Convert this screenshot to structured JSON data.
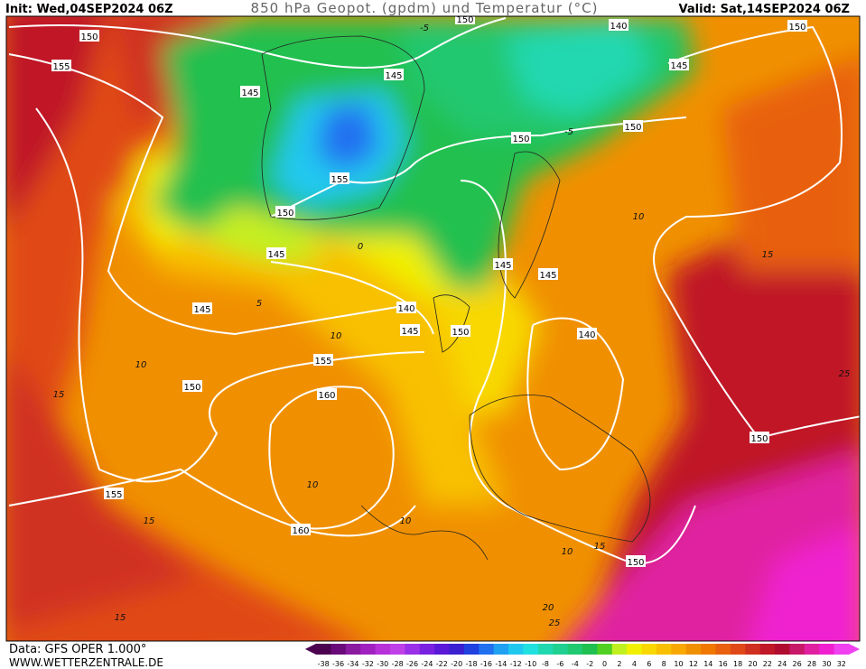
{
  "header": {
    "init": "Init: Wed,04SEP2024 06Z",
    "title": "850 hPa Geopot. (gpdm) und Temperatur (°C)",
    "valid": "Valid: Sat,14SEP2024 06Z"
  },
  "footer": {
    "source": "Data: GFS OPER 1.000°",
    "site": "WWW.WETTERZENTRALE.DE"
  },
  "geopotential_labels": [
    150,
    155,
    145,
    145,
    150,
    140,
    150,
    145,
    150,
    150,
    155,
    150,
    145,
    145,
    145,
    145,
    140,
    145,
    150,
    140,
    155,
    150,
    160,
    150,
    155,
    160,
    150
  ],
  "temperature_labels": [
    10,
    15,
    10,
    10,
    15,
    25,
    10,
    10,
    15,
    10,
    15,
    20,
    25,
    15,
    5,
    0,
    -5,
    -5
  ],
  "colorbar": {
    "labels": [
      -38,
      -36,
      -34,
      -32,
      -30,
      -28,
      -26,
      -24,
      -22,
      -20,
      -18,
      -16,
      -14,
      -12,
      -10,
      -8,
      -6,
      -4,
      -2,
      0,
      2,
      4,
      6,
      8,
      10,
      12,
      14,
      16,
      18,
      20,
      22,
      24,
      26,
      28,
      30,
      32
    ],
    "colors": [
      "#4b0050",
      "#6a0a7a",
      "#8a1aa0",
      "#a020c0",
      "#b830d8",
      "#c040e8",
      "#9a30e8",
      "#7a20e0",
      "#5a18d8",
      "#3a20d0",
      "#2040e0",
      "#2070f0",
      "#20a0f0",
      "#20c8f0",
      "#20e0e0",
      "#20d8b0",
      "#20d090",
      "#20c870",
      "#20c050",
      "#50d020",
      "#c0f020",
      "#f0f000",
      "#f8d800",
      "#f8c000",
      "#f8a800",
      "#f09000",
      "#f07800",
      "#e86010",
      "#e04818",
      "#d03020",
      "#c01828",
      "#b00c30",
      "#c8186a",
      "#e020a0",
      "#f020d0",
      "#f040f0"
    ]
  }
}
